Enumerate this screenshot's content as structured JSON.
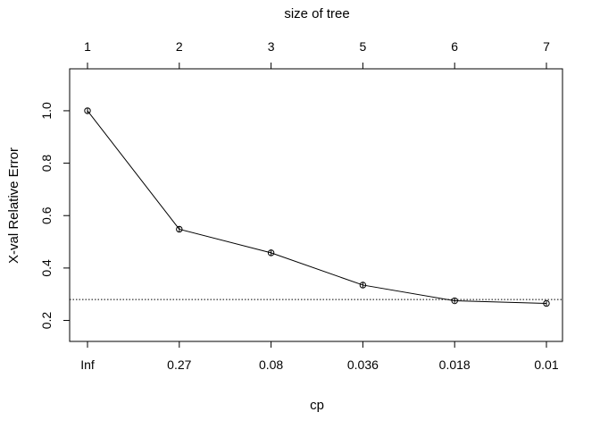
{
  "chart_data": {
    "type": "line",
    "title": "",
    "top_axis_label": "size of tree",
    "top_ticks": [
      "1",
      "2",
      "3",
      "5",
      "6",
      "7"
    ],
    "xlabel": "cp",
    "ylabel": "X-val Relative Error",
    "categories": [
      "Inf",
      "0.27",
      "0.08",
      "0.036",
      "0.018",
      "0.01"
    ],
    "y_ticks": [
      "0.2",
      "0.4",
      "0.6",
      "0.8",
      "1.0"
    ],
    "ylim": [
      0.12,
      1.16
    ],
    "grid": false,
    "series": [
      {
        "values": [
          1.0,
          0.548,
          0.458,
          0.335,
          0.275,
          0.265
        ],
        "error": [
          0.01,
          0.01,
          0.01,
          0.01,
          0.008,
          0.008
        ]
      }
    ],
    "reference_line": {
      "y": 0.28,
      "style": "dotted"
    }
  }
}
